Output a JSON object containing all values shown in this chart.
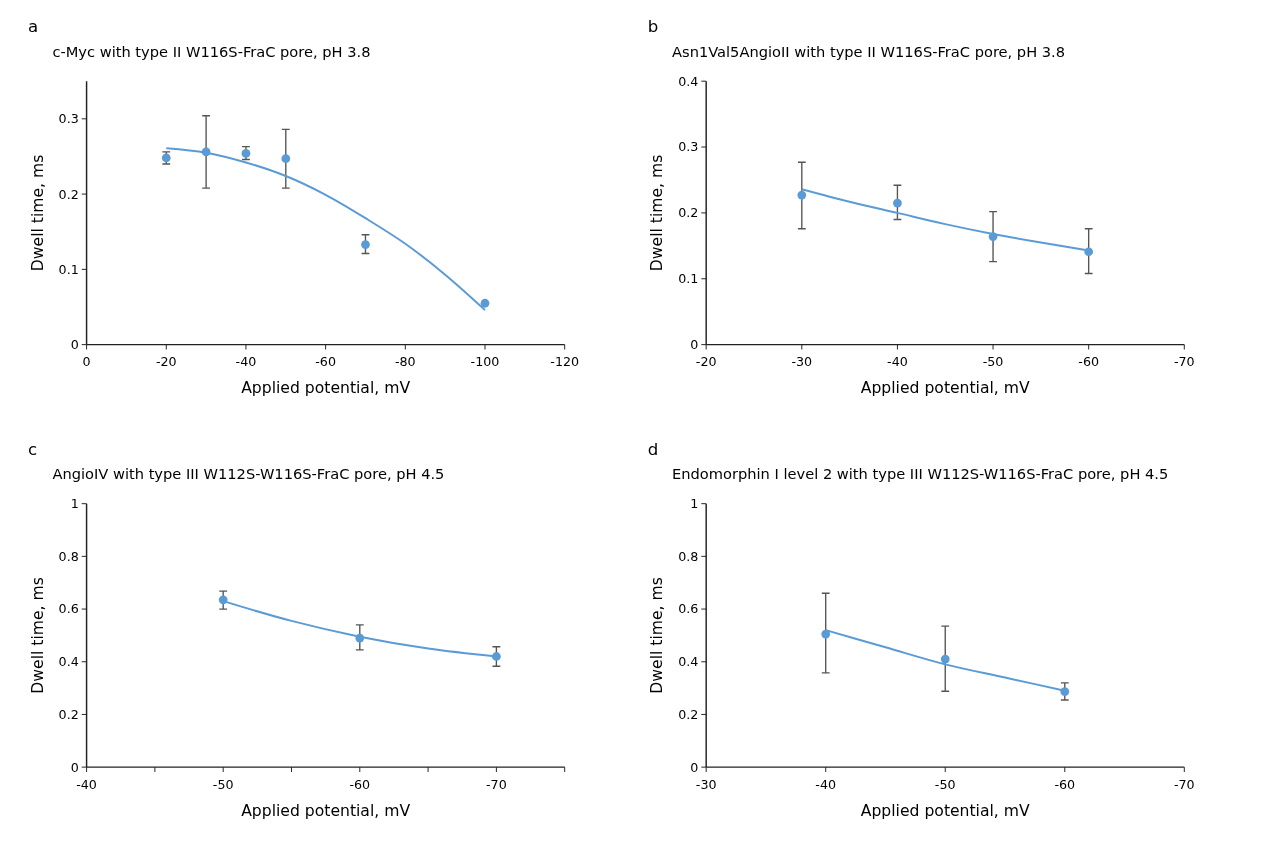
{
  "chart_data": [
    {
      "type": "scatter",
      "title": "c-Myc with type II W116S-FraC pore, pH 3.8",
      "xlabel": "Applied potential, mV",
      "ylabel": "Dwell time, ms",
      "annotations": [
        "a"
      ],
      "xlim": [
        0,
        -120
      ],
      "xticks": [
        0,
        -20,
        -40,
        -60,
        -80,
        -100,
        -120
      ],
      "ylim": [
        0,
        0.35
      ],
      "yticks": [
        0,
        0.1,
        0.2,
        0.3
      ],
      "series": [
        {
          "marker": "circle",
          "color": "#5b9bd5",
          "x": [
            -20,
            -30,
            -40,
            -50,
            -70,
            -100
          ],
          "values": [
            0.248,
            0.256,
            0.254,
            0.247,
            0.133,
            0.055
          ],
          "errors": [
            [
              0.24,
              0.256
            ],
            [
              0.208,
              0.304
            ],
            [
              0.246,
              0.263
            ],
            [
              0.208,
              0.286
            ],
            [
              0.121,
              0.146
            ],
            null
          ]
        },
        {
          "type": "line",
          "marker": "none",
          "color": "#5b9bd5",
          "x": [
            -20,
            -30,
            -40,
            -50,
            -60,
            -70,
            -80,
            -90,
            -100
          ],
          "values": [
            0.261,
            0.255,
            0.242,
            0.224,
            0.199,
            0.168,
            0.134,
            0.093,
            0.046
          ]
        }
      ]
    },
    {
      "type": "scatter",
      "title": "Asn1Val5AngioII with type II W116S-FraC pore, pH 3.8",
      "xlabel": "Applied potential, mV",
      "ylabel": "Dwell time, ms",
      "annotations": [
        "b"
      ],
      "xlim": [
        -20,
        -70
      ],
      "xticks": [
        -20,
        -30,
        -40,
        -50,
        -60,
        -70
      ],
      "ylim": [
        0,
        0.4
      ],
      "yticks": [
        0,
        0.1,
        0.2,
        0.3,
        0.4
      ],
      "series": [
        {
          "marker": "circle",
          "color": "#5b9bd5",
          "x": [
            -30,
            -40,
            -50,
            -60
          ],
          "values": [
            0.227,
            0.215,
            0.164,
            0.141
          ],
          "errors": [
            [
              0.176,
              0.277
            ],
            [
              0.19,
              0.242
            ],
            [
              0.126,
              0.202
            ],
            [
              0.108,
              0.176
            ]
          ]
        },
        {
          "type": "line",
          "marker": "none",
          "color": "#5b9bd5",
          "x": [
            -30,
            -35,
            -40,
            -45,
            -50,
            -55,
            -60
          ],
          "values": [
            0.236,
            0.217,
            0.2,
            0.183,
            0.168,
            0.155,
            0.143
          ]
        }
      ]
    },
    {
      "type": "scatter",
      "title": "AngioIV with type III W112S-W116S-FraC pore, pH 4.5",
      "xlabel": "Applied potential, mV",
      "ylabel": "Dwell time, ms",
      "annotations": [
        "c"
      ],
      "xlim": [
        -40,
        -75
      ],
      "xticks": [
        -40,
        {
          "value": -45,
          "label": null
        },
        -50,
        {
          "value": -55,
          "label": null
        },
        -60,
        {
          "value": -65,
          "label": null
        },
        -70,
        {
          "value": -75,
          "label": null
        }
      ],
      "ylim": [
        0,
        1
      ],
      "yticks": [
        0,
        0.2,
        0.4,
        0.6,
        0.8,
        1
      ],
      "series": [
        {
          "marker": "circle",
          "color": "#5b9bd5",
          "x": [
            -50,
            -60,
            -70
          ],
          "values": [
            0.635,
            0.49,
            0.42
          ],
          "errors": [
            [
              0.6,
              0.668
            ],
            [
              0.445,
              0.54
            ],
            [
              0.383,
              0.457
            ]
          ]
        },
        {
          "type": "line",
          "marker": "none",
          "color": "#5b9bd5",
          "x": [
            -50,
            -55,
            -60,
            -65,
            -70
          ],
          "values": [
            0.63,
            0.555,
            0.495,
            0.45,
            0.42
          ]
        }
      ]
    },
    {
      "type": "scatter",
      "title": "Endomorphin I level 2 with type III W112S-W116S-FraC pore, pH 4.5",
      "xlabel": "Applied potential, mV",
      "ylabel": "Dwell time, ms",
      "annotations": [
        "d"
      ],
      "xlim": [
        -30,
        -70
      ],
      "xticks": [
        -30,
        -40,
        -50,
        -60,
        -70
      ],
      "ylim": [
        0,
        1
      ],
      "yticks": [
        0,
        0.2,
        0.4,
        0.6,
        0.8,
        1
      ],
      "series": [
        {
          "marker": "circle",
          "color": "#5b9bd5",
          "x": [
            -40,
            -50,
            -60
          ],
          "values": [
            0.505,
            0.41,
            0.287
          ],
          "errors": [
            [
              0.358,
              0.66
            ],
            [
              0.288,
              0.535
            ],
            [
              0.255,
              0.32
            ]
          ]
        },
        {
          "type": "line",
          "marker": "none",
          "color": "#5b9bd5",
          "x": [
            -40,
            -45,
            -50,
            -55,
            -60
          ],
          "values": [
            0.52,
            0.455,
            0.39,
            0.34,
            0.29
          ]
        }
      ]
    }
  ]
}
